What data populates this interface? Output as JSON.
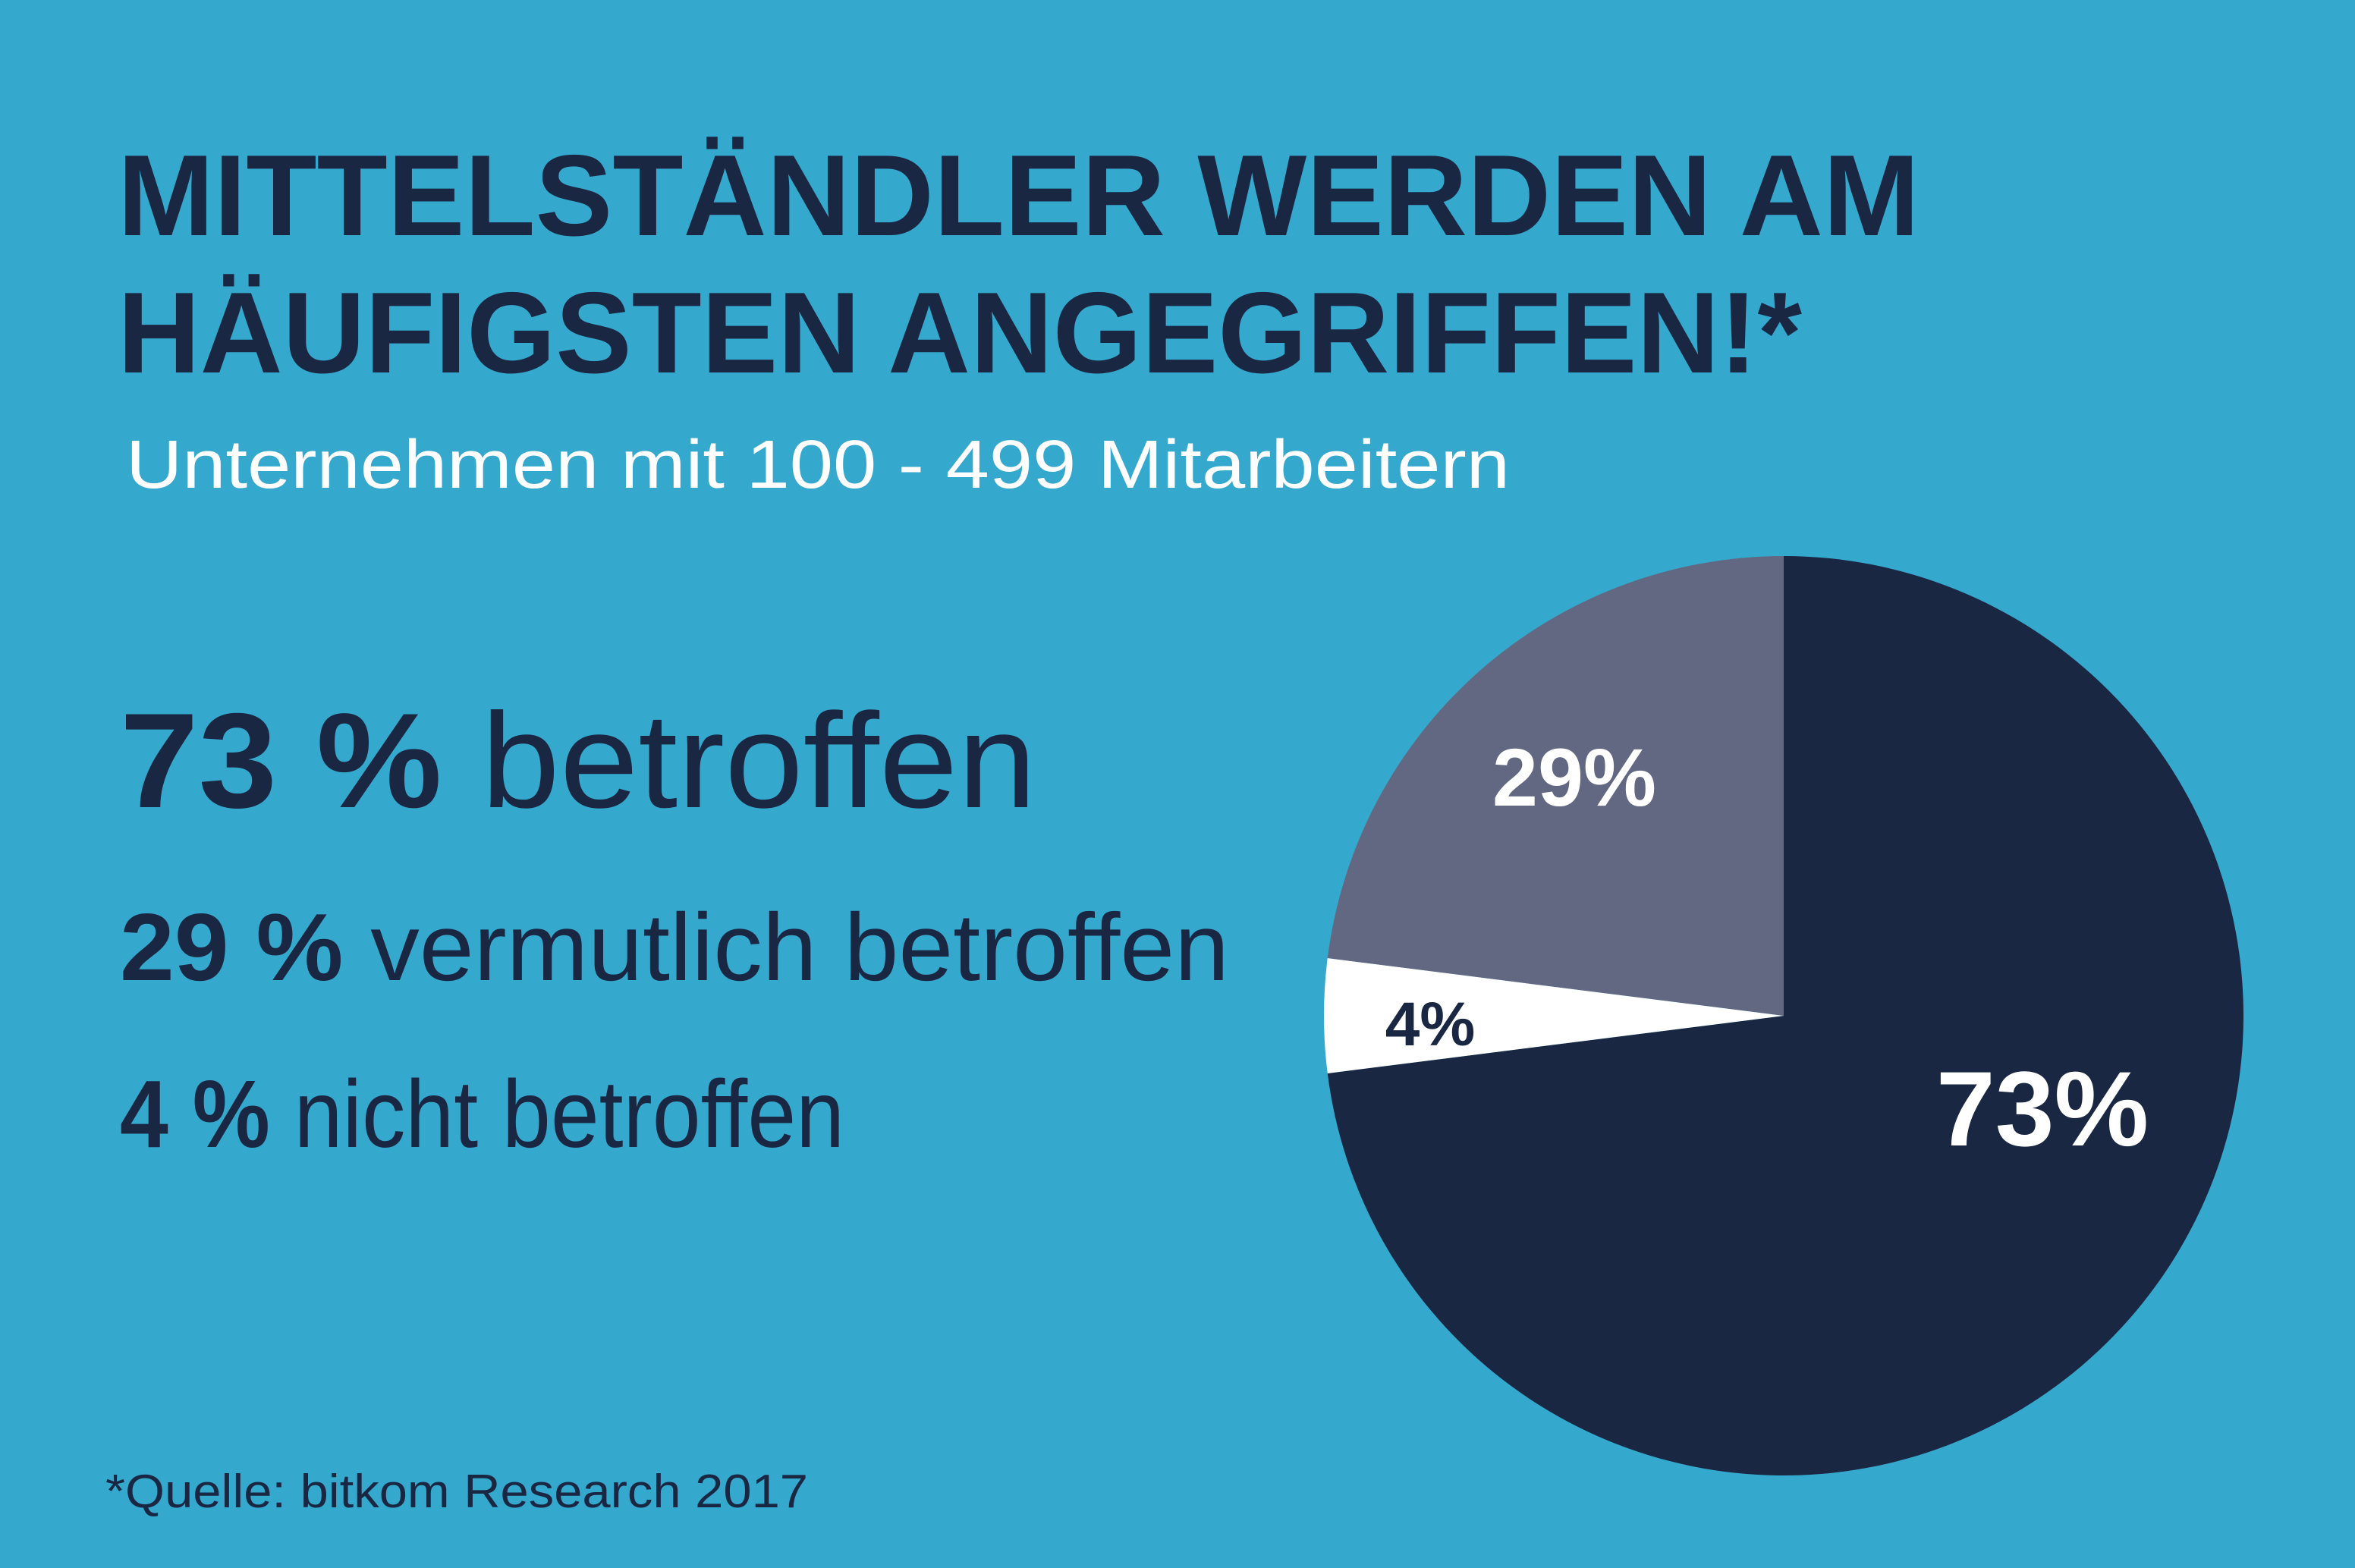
{
  "colors": {
    "background": "#35A8CE",
    "dark": "#1A2742",
    "gray": "#636882",
    "white": "#FFFFFF"
  },
  "title_line1": "MITTELSTÄNDLER WERDEN AM",
  "title_line2": "HÄUFIGSTEN ANGEGRIFFEN!*",
  "subtitle": "Unternehmen mit 100 - 499 Mitarbeitern",
  "stats": [
    {
      "value": "73 %",
      "text": " betroffen"
    },
    {
      "value": "29 %",
      "text": " vermutlich betroffen"
    },
    {
      "value": "4 %",
      "text": " nicht betroffen"
    }
  ],
  "source": "*Quelle: bitkom Research 2017",
  "chart_data": {
    "type": "pie",
    "start": "top",
    "direction": "clockwise",
    "slices": [
      {
        "label": "73%",
        "value": 73,
        "color": "#1A2742",
        "label_color": "#FFFFFF"
      },
      {
        "label": "4%",
        "value": 4,
        "color": "#FFFFFF",
        "label_color": "#1A2742"
      },
      {
        "label": "29%",
        "value": 29,
        "color": "#636882",
        "label_color": "#FFFFFF",
        "fills_remainder": true
      }
    ]
  }
}
